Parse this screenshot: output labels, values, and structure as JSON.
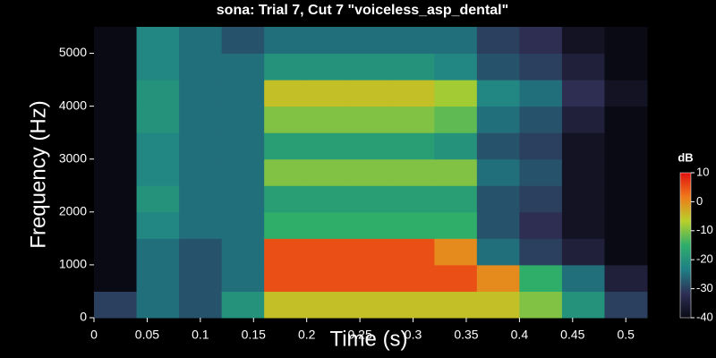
{
  "chart_data": {
    "type": "spectrogram",
    "title": "sona: Trial 7, Cut 7 \"voiceless_asp_dental\"",
    "x_label": "Time (s)",
    "y_label": "Frequency (Hz)",
    "x_bins": [
      0,
      0.04,
      0.08,
      0.12,
      0.16,
      0.2,
      0.24,
      0.28,
      0.32,
      0.36,
      0.4,
      0.44,
      0.48,
      0.52
    ],
    "y_bins": [
      0,
      500,
      1000,
      1500,
      2000,
      2500,
      3000,
      3500,
      4000,
      4500,
      5000,
      5500
    ],
    "values": [
      [
        -30,
        -25,
        -28,
        -20,
        -5,
        -5,
        -5,
        -5,
        -5,
        -5,
        -10,
        -20,
        -30
      ],
      [
        -40,
        -25,
        -28,
        -25,
        5,
        5,
        5,
        5,
        5,
        0,
        -15,
        -25,
        -35
      ],
      [
        -40,
        -25,
        -28,
        -25,
        5,
        5,
        5,
        5,
        0,
        -25,
        -30,
        -35,
        -40
      ],
      [
        -40,
        -22,
        -25,
        -25,
        -15,
        -15,
        -15,
        -15,
        -15,
        -28,
        -32,
        -38,
        -40
      ],
      [
        -40,
        -20,
        -25,
        -25,
        -18,
        -18,
        -18,
        -18,
        -18,
        -28,
        -30,
        -38,
        -40
      ],
      [
        -40,
        -22,
        -25,
        -25,
        -10,
        -10,
        -10,
        -10,
        -10,
        -25,
        -28,
        -38,
        -40
      ],
      [
        -40,
        -22,
        -25,
        -25,
        -18,
        -18,
        -18,
        -18,
        -20,
        -28,
        -30,
        -38,
        -40
      ],
      [
        -40,
        -20,
        -25,
        -25,
        -10,
        -10,
        -10,
        -10,
        -12,
        -25,
        -28,
        -35,
        -40
      ],
      [
        -40,
        -20,
        -25,
        -25,
        -5,
        -5,
        -5,
        -5,
        -8,
        -22,
        -25,
        -32,
        -38
      ],
      [
        -40,
        -22,
        -25,
        -25,
        -20,
        -20,
        -20,
        -20,
        -22,
        -28,
        -30,
        -35,
        -40
      ],
      [
        -40,
        -22,
        -25,
        -28,
        -25,
        -25,
        -25,
        -25,
        -25,
        -30,
        -32,
        -38,
        -40
      ]
    ],
    "xlim": [
      0,
      0.52
    ],
    "xticks": [
      0,
      0.05,
      0.1,
      0.15,
      0.2,
      0.25,
      0.3,
      0.35,
      0.4,
      0.45,
      0.5
    ],
    "ylim": [
      0,
      5500
    ],
    "yticks": [
      0,
      1000,
      2000,
      3000,
      4000,
      5000
    ],
    "colorbar_label": "dB",
    "clim": [
      -40,
      10
    ],
    "colorbar_ticks": [
      10,
      0,
      -10,
      -20,
      -30,
      -40
    ],
    "colormap": [
      "#0a0a14",
      "#2e2f55",
      "#1f7f86",
      "#2fae6a",
      "#b8d02a",
      "#f07a1a",
      "#e01010"
    ]
  }
}
